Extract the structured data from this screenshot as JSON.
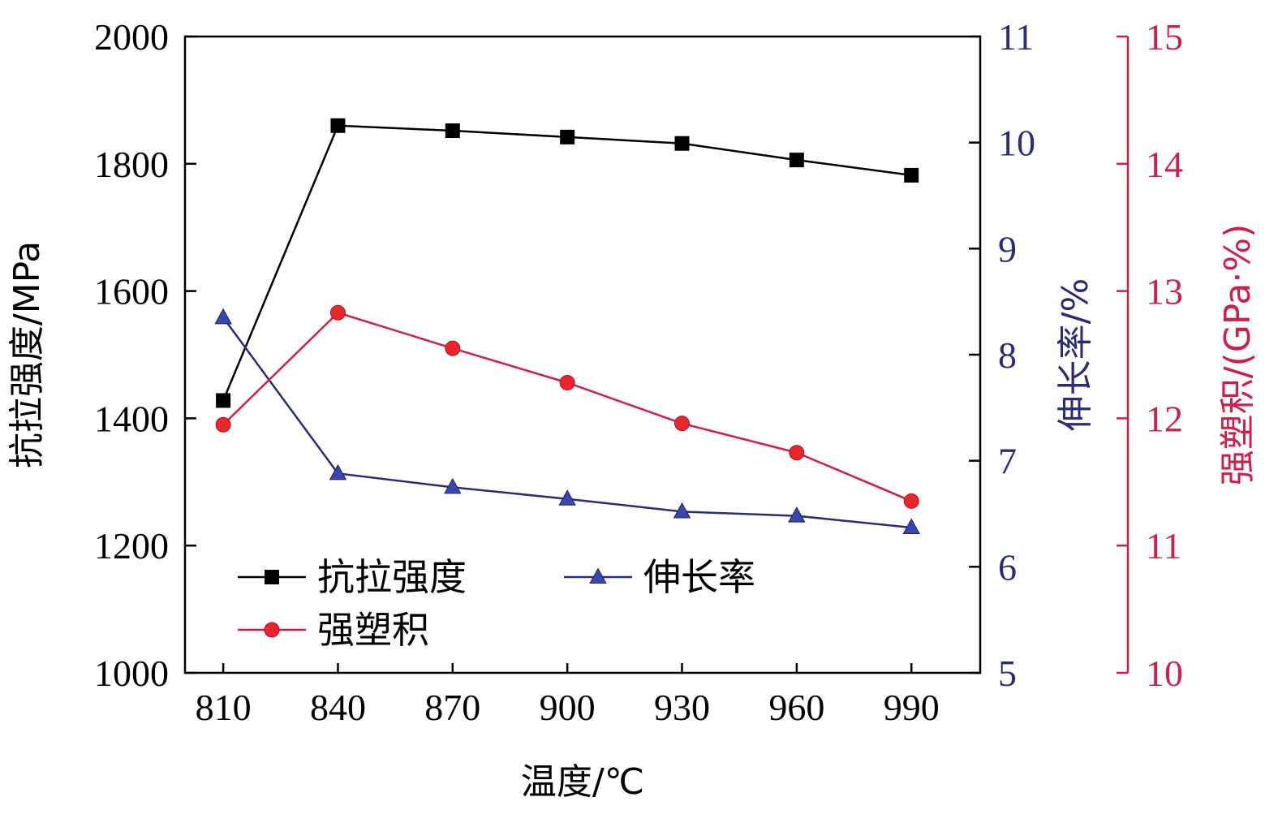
{
  "chart_data": {
    "type": "line",
    "x": [
      810,
      840,
      870,
      900,
      930,
      960,
      990
    ],
    "xlabel": "温度/℃",
    "xlim": [
      800,
      1008
    ],
    "x_ticks": [
      810,
      840,
      870,
      900,
      930,
      960,
      990
    ],
    "axes": {
      "left": {
        "label": "抗拉强度/MPa",
        "range": [
          1000,
          2000
        ],
        "ticks": [
          1000,
          1200,
          1400,
          1600,
          1800,
          2000
        ],
        "color": "#000000"
      },
      "right1": {
        "label": "伸长率/%",
        "range": [
          5,
          11
        ],
        "ticks": [
          5,
          6,
          7,
          8,
          9,
          10,
          11
        ],
        "color": "#2b2c75"
      },
      "right2": {
        "label": "强塑积/(GPa·%)",
        "range": [
          10,
          15
        ],
        "ticks": [
          10,
          11,
          12,
          13,
          14,
          15
        ],
        "color": "#cc1f4a"
      }
    },
    "series": [
      {
        "name": "抗拉强度",
        "axis": "left",
        "marker": "square",
        "color": "#000000",
        "marker_color": "#000000",
        "values": [
          1428,
          1860,
          1852,
          1842,
          1832,
          1806,
          1782
        ]
      },
      {
        "name": "伸长率",
        "axis": "right1",
        "marker": "triangle",
        "color": "#2b2c75",
        "marker_color": "#3a45b0",
        "values": [
          8.35,
          6.88,
          6.75,
          6.64,
          6.52,
          6.48,
          6.37
        ]
      },
      {
        "name": "强塑积",
        "axis": "right2",
        "marker": "circle",
        "color": "#cc1f4a",
        "marker_color": "#e8262c",
        "values": [
          11.95,
          12.83,
          12.55,
          12.28,
          11.96,
          11.73,
          11.35
        ]
      }
    ],
    "legend": {
      "placement": "bottom-left",
      "columns": 2
    },
    "grid": false
  }
}
